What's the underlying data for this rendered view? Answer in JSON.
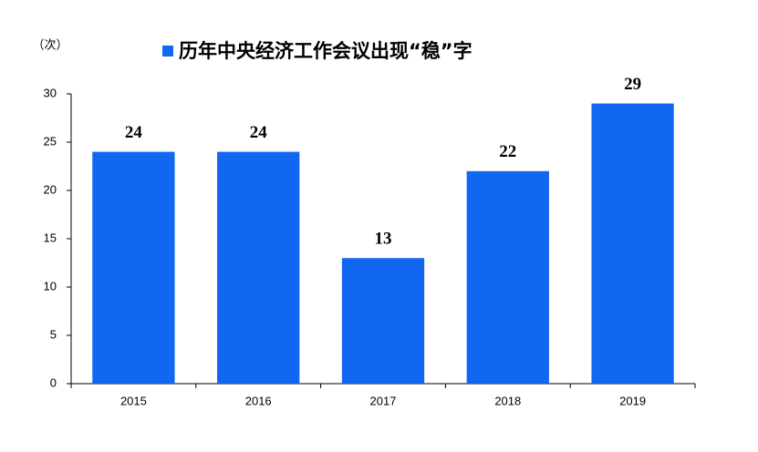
{
  "chart_data": {
    "type": "bar",
    "y_label": "（次）",
    "series": [
      {
        "name": "历年中央经济工作会议出现“稳”字",
        "color": "#1166f2",
        "values": [
          24,
          24,
          13,
          22,
          29
        ]
      }
    ],
    "categories": [
      "2015",
      "2016",
      "2017",
      "2018",
      "2019"
    ],
    "ylim": [
      0,
      30
    ],
    "yticks": [
      0,
      5,
      10,
      15,
      20,
      25,
      30
    ],
    "grid": false
  }
}
